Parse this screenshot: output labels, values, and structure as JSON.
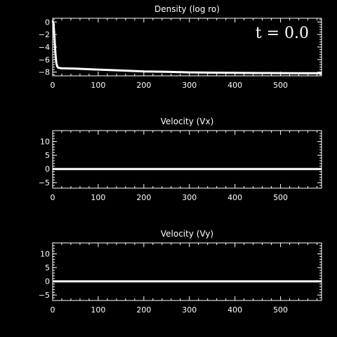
{
  "chart_data": [
    {
      "type": "line",
      "title": "Density (log ro)",
      "xlim": [
        0,
        590
      ],
      "ylim": [
        -8.6,
        0.6
      ],
      "xticks": [
        0,
        100,
        200,
        300,
        400,
        500
      ],
      "yticks": [
        0,
        -2,
        -4,
        -6,
        -8
      ],
      "grid": false,
      "annotation": {
        "text": "t =   0.0",
        "placement": "top-right"
      },
      "series": [
        {
          "color": "#ffffff",
          "x": [
            0,
            2,
            4,
            6,
            8,
            10,
            12,
            15,
            20,
            50,
            100,
            150,
            200,
            250,
            300,
            350,
            400,
            450,
            500,
            550,
            590
          ],
          "y": [
            0.2,
            -0.3,
            -2.5,
            -5.0,
            -6.5,
            -7.1,
            -7.3,
            -7.35,
            -7.4,
            -7.45,
            -7.6,
            -7.75,
            -7.9,
            -7.95,
            -8.05,
            -8.1,
            -8.12,
            -8.15,
            -8.16,
            -8.17,
            -8.17
          ]
        }
      ]
    },
    {
      "type": "line",
      "title": "Velocity (Vx)",
      "xlim": [
        0,
        590
      ],
      "ylim": [
        -7,
        14
      ],
      "xticks": [
        0,
        100,
        200,
        300,
        400,
        500
      ],
      "yticks": [
        10,
        5,
        0,
        -5
      ],
      "grid": false,
      "series": [
        {
          "color": "#ffffff",
          "x": [
            0,
            590
          ],
          "y": [
            0,
            0
          ]
        }
      ]
    },
    {
      "type": "line",
      "title": "Velocity (Vy)",
      "xlim": [
        0,
        590
      ],
      "ylim": [
        -7,
        14
      ],
      "xticks": [
        0,
        100,
        200,
        300,
        400,
        500
      ],
      "yticks": [
        10,
        5,
        0,
        -5
      ],
      "grid": false,
      "series": [
        {
          "color": "#ffffff",
          "x": [
            0,
            590
          ],
          "y": [
            0,
            0
          ]
        }
      ]
    }
  ]
}
